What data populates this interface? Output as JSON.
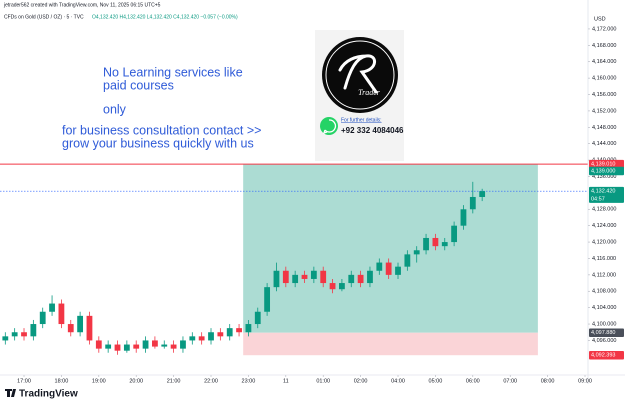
{
  "chart_data": {
    "type": "candlestick",
    "credit": "jetrader562 created with TradingView.com, Nov 11, 2025 06:15 UTC+5",
    "title": "CFDs on Gold (USD / OZ) · 5 · TVC",
    "ohlc_label": "O4,132.420 H4,132.420 L4,132.420 C4,132.420 −0.057 (−0.00%)",
    "currency": "USD",
    "up_color": "#089981",
    "down_color": "#f23645",
    "x": [
      -0.5,
      -0.25,
      0,
      0.25,
      0.5,
      0.75,
      1,
      1.25,
      1.5,
      1.75,
      2,
      2.25,
      2.5,
      2.75,
      3,
      3.25,
      3.5,
      3.75,
      4,
      4.25,
      4.5,
      4.75,
      5,
      5.25,
      5.5,
      5.75,
      6,
      6.25,
      6.5,
      6.75,
      7,
      7.25,
      7.5,
      7.75,
      8,
      8.25,
      8.5,
      8.75,
      9,
      9.25,
      9.5,
      9.75,
      10,
      10.25,
      10.5,
      10.75,
      11,
      11.25,
      11.5,
      11.75,
      12,
      12.25
    ],
    "open": [
      4096,
      4097,
      4098,
      4097,
      4100,
      4103,
      4105,
      4100,
      4098,
      4102,
      4096,
      4094,
      4095,
      4093.5,
      4095,
      4094,
      4096,
      4094.5,
      4095,
      4094,
      4096,
      4097,
      4096,
      4098,
      4097,
      4099,
      4098,
      4100,
      4103,
      4109,
      4113,
      4110,
      4112,
      4111,
      4113,
      4110,
      4108.5,
      4110,
      4112,
      4110,
      4113,
      4115,
      4112,
      4114,
      4117,
      4118,
      4121,
      4119,
      4120,
      4124,
      4128,
      4131
    ],
    "high": [
      4098,
      4099,
      4099,
      4101,
      4104,
      4107,
      4106,
      4101,
      4103,
      4103,
      4097,
      4096,
      4096,
      4096,
      4096,
      4097,
      4097,
      4096,
      4096,
      4097,
      4098,
      4098,
      4099,
      4099,
      4100,
      4100,
      4101,
      4104,
      4110,
      4115,
      4114,
      4113,
      4113,
      4114,
      4114,
      4111,
      4111,
      4113,
      4113,
      4114,
      4116,
      4116,
      4115,
      4118,
      4119,
      4122,
      4122,
      4121,
      4125,
      4129,
      4134.7,
      4133
    ],
    "low": [
      4095,
      4096,
      4096,
      4096,
      4099,
      4102,
      4099,
      4097,
      4097,
      4095,
      4093,
      4093,
      4092.5,
      4093,
      4093,
      4093,
      4094,
      4094,
      4093,
      4093,
      4095,
      4095,
      4095,
      4096,
      4096,
      4097,
      4097,
      4099,
      4102,
      4108,
      4109,
      4109,
      4110,
      4110,
      4109,
      4107.5,
      4108,
      4109,
      4109,
      4109,
      4112,
      4111,
      4111,
      4113,
      4115,
      4117,
      4118,
      4118,
      4119,
      4123,
      4127,
      4130
    ],
    "close": [
      4097,
      4098,
      4097,
      4100,
      4103,
      4105,
      4100,
      4098,
      4102,
      4096,
      4094,
      4095,
      4093.5,
      4095,
      4094,
      4096,
      4094.5,
      4095,
      4094,
      4096,
      4097,
      4096,
      4098,
      4097,
      4099,
      4098,
      4100,
      4103,
      4109,
      4113,
      4110,
      4112,
      4111,
      4113,
      4110,
      4108.5,
      4110,
      4112,
      4110,
      4113,
      4115,
      4112,
      4114,
      4117,
      4118,
      4121,
      4119,
      4120,
      4124,
      4128,
      4131,
      4132.42
    ],
    "xlim": [
      -0.642,
      15.08
    ],
    "xticks": [
      {
        "value": 0,
        "label": "17:00"
      },
      {
        "value": 1,
        "label": "18:00"
      },
      {
        "value": 2,
        "label": "19:00"
      },
      {
        "value": 3,
        "label": "20:00"
      },
      {
        "value": 4,
        "label": "21:00"
      },
      {
        "value": 5,
        "label": "22:00"
      },
      {
        "value": 6,
        "label": "23:00"
      },
      {
        "value": 7,
        "label": "11"
      },
      {
        "value": 8,
        "label": "01:00"
      },
      {
        "value": 9,
        "label": "02:00"
      },
      {
        "value": 10,
        "label": "04:00"
      },
      {
        "value": 11,
        "label": "05:00"
      },
      {
        "value": 12,
        "label": "06:00"
      },
      {
        "value": 13,
        "label": "07:00"
      },
      {
        "value": 14,
        "label": "08:00"
      },
      {
        "value": 15,
        "label": "09:00"
      }
    ],
    "ylim": [
      4088.3,
      4175.4
    ],
    "yticks": [
      {
        "value": 4096,
        "label": "4,096.000"
      },
      {
        "value": 4100,
        "label": "4,100.000"
      },
      {
        "value": 4104,
        "label": "4,104.000"
      },
      {
        "value": 4108,
        "label": "4,108.000"
      },
      {
        "value": 4112,
        "label": "4,112.000"
      },
      {
        "value": 4116,
        "label": "4,116.000"
      },
      {
        "value": 4120,
        "label": "4,120.000"
      },
      {
        "value": 4124,
        "label": "4,124.000"
      },
      {
        "value": 4128,
        "label": "4,128.000"
      },
      {
        "value": 4136,
        "label": "4,136.000"
      },
      {
        "value": 4140,
        "label": "4,140.000"
      },
      {
        "value": 4144,
        "label": "4,144.000"
      },
      {
        "value": 4148,
        "label": "4,148.000"
      },
      {
        "value": 4152,
        "label": "4,152.000"
      },
      {
        "value": 4156,
        "label": "4,156.000"
      },
      {
        "value": 4160,
        "label": "4,160.000"
      },
      {
        "value": 4164,
        "label": "4,164.000"
      },
      {
        "value": 4168,
        "label": "4,168.000"
      },
      {
        "value": 4172,
        "label": "4,172.000"
      }
    ],
    "position": {
      "top": 4139,
      "bottom": 4097.88,
      "stop": 4092.393,
      "x_start": 5.86,
      "x_end": 13.74,
      "label": "4139",
      "profit_color": "#acdcd3",
      "loss_color": "#fad4d7"
    },
    "price_lines": [
      {
        "value": 4139.01,
        "label": "4,139.010",
        "color": "#f23645",
        "line": "solid"
      },
      {
        "value": 4139.0,
        "label": "4,139.000",
        "color": "#089981",
        "line": "none"
      },
      {
        "value": 4132.42,
        "label": "4,132.420",
        "color": "#089981",
        "line": "dotted",
        "countdown": "04:57"
      },
      {
        "value": 4097.88,
        "label": "4,097.880",
        "color": "#4a4f5a",
        "line": "none"
      },
      {
        "value": 4092.393,
        "label": "4,092.393",
        "color": "#f23645",
        "line": "none"
      }
    ],
    "annotations": [
      "No Learning services like",
      "paid courses",
      "only",
      "for business consultation contact >>",
      "grow your business quickly with us"
    ],
    "contact": {
      "logo": "Trader",
      "heading": "For further details:",
      "phone": "+92 332 4084046"
    },
    "footer": "TradingView"
  }
}
